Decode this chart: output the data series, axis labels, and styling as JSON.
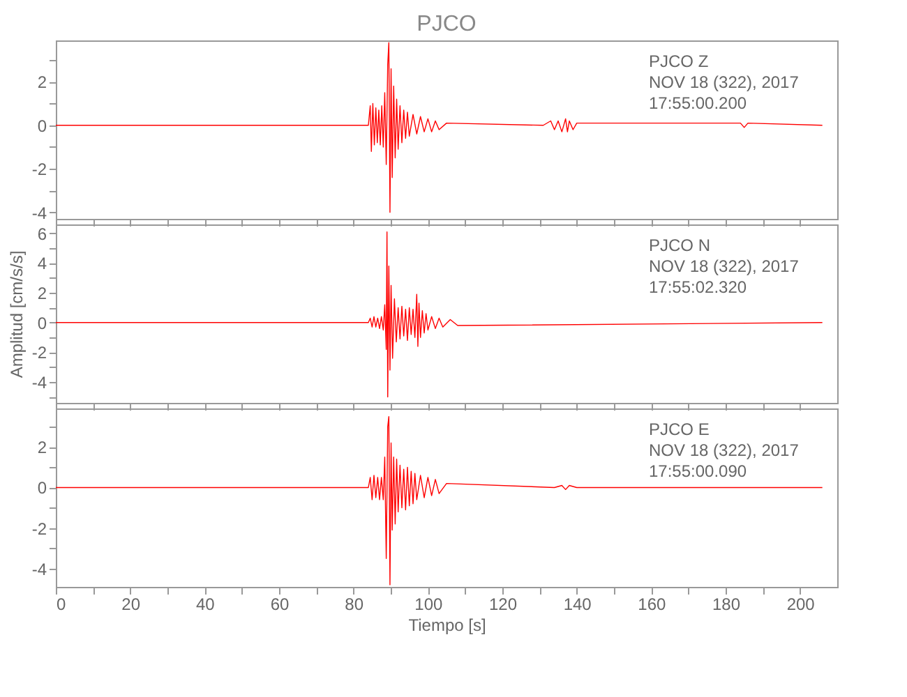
{
  "chart_data": [
    {
      "type": "line",
      "title": "PJCO",
      "annotations": [
        "PJCO   Z",
        "NOV 18 (322), 2017",
        "17:55:00.200"
      ],
      "xlim": [
        0,
        210
      ],
      "ylim": [
        -4.3,
        3.9
      ],
      "xticks": [
        0,
        {
          "value": 10,
          "label": null
        },
        20,
        {
          "value": 30,
          "label": null
        },
        40,
        {
          "value": 50,
          "label": null
        },
        60,
        {
          "value": 70,
          "label": null
        },
        80,
        {
          "value": 90,
          "label": null
        },
        100,
        {
          "value": 110,
          "label": null
        },
        120,
        {
          "value": 130,
          "label": null
        },
        140,
        {
          "value": 150,
          "label": null
        },
        160,
        {
          "value": 170,
          "label": null
        },
        180,
        {
          "value": 190,
          "label": null
        },
        200
      ],
      "yticks": [
        -4,
        {
          "value": -3,
          "label": null
        },
        -2,
        {
          "value": -1,
          "label": null
        },
        0,
        {
          "value": 1,
          "label": null
        },
        2,
        {
          "value": 3,
          "label": null
        }
      ],
      "tick_labels": "y",
      "grid": false,
      "series": [
        {
          "color": "#ff0000",
          "x": [
            0,
            84,
            84.5,
            84.8,
            85.2,
            85.6,
            86,
            86.4,
            86.8,
            87.2,
            87.6,
            88,
            88.4,
            88.8,
            89.2,
            89.5,
            89.8,
            90.1,
            90.4,
            90.8,
            91.2,
            91.6,
            92,
            92.5,
            93,
            93.5,
            94,
            94.5,
            95,
            96,
            97,
            98,
            99,
            100,
            101,
            102,
            103,
            105,
            131,
            133,
            134,
            135,
            136,
            137,
            137.5,
            138,
            139,
            140,
            184,
            185,
            186,
            206
          ],
          "values": [
            0,
            0,
            0.9,
            -1.2,
            1.0,
            -0.9,
            0.8,
            -0.8,
            0.7,
            -0.9,
            0.9,
            -1.0,
            1.5,
            -1.8,
            2.8,
            3.8,
            -4.0,
            2.6,
            -2.4,
            1.8,
            -1.5,
            1.2,
            -1.1,
            0.9,
            -0.8,
            0.7,
            -0.6,
            0.6,
            -0.5,
            0.5,
            -0.4,
            0.4,
            -0.3,
            0.3,
            -0.3,
            0.2,
            -0.2,
            0.1,
            0,
            0.2,
            -0.2,
            0.2,
            -0.3,
            0.3,
            -0.3,
            0.2,
            -0.2,
            0.1,
            0.1,
            -0.1,
            0.1,
            0
          ]
        }
      ]
    },
    {
      "type": "line",
      "ylabel": "Amplitud [cm/s/s]",
      "annotations": [
        "PJCO   N",
        "NOV 18 (322), 2017",
        "17:55:02.320"
      ],
      "xlim": [
        0,
        210
      ],
      "ylim": [
        -5.4,
        6.6
      ],
      "xticks": [
        0,
        {
          "value": 10,
          "label": null
        },
        20,
        {
          "value": 30,
          "label": null
        },
        40,
        {
          "value": 50,
          "label": null
        },
        60,
        {
          "value": 70,
          "label": null
        },
        80,
        {
          "value": 90,
          "label": null
        },
        100,
        {
          "value": 110,
          "label": null
        },
        120,
        {
          "value": 130,
          "label": null
        },
        140,
        {
          "value": 150,
          "label": null
        },
        160,
        {
          "value": 170,
          "label": null
        },
        180,
        {
          "value": 190,
          "label": null
        },
        200
      ],
      "yticks": [
        {
          "value": -5,
          "label": null
        },
        -4,
        {
          "value": -3,
          "label": null
        },
        -2,
        {
          "value": -1,
          "label": null
        },
        0,
        {
          "value": 1,
          "label": null
        },
        2,
        {
          "value": 3,
          "label": null
        },
        4,
        {
          "value": 5,
          "label": null
        },
        6
      ],
      "tick_labels": "y",
      "grid": false,
      "series": [
        {
          "color": "#ff0000",
          "x": [
            0,
            84,
            84.5,
            85,
            85.5,
            86,
            86.5,
            87,
            87.5,
            88,
            88.4,
            88.8,
            89,
            89.2,
            89.5,
            89.8,
            90.1,
            90.5,
            91,
            91.5,
            92,
            92.5,
            93,
            93.5,
            94,
            94.5,
            95,
            95.5,
            96,
            96.5,
            97,
            97.3,
            97.6,
            98,
            98.5,
            99,
            99.5,
            100,
            101,
            102,
            103,
            104,
            106,
            108,
            206
          ],
          "values": [
            0,
            0,
            0.3,
            -0.3,
            0.4,
            -0.3,
            0.3,
            -0.4,
            0.4,
            -0.5,
            1.2,
            -1.8,
            6.1,
            -5.0,
            3.8,
            -3.2,
            2.5,
            -2.4,
            1.6,
            -1.3,
            1.0,
            -1.1,
            1.1,
            -0.9,
            0.9,
            -1.2,
            1.0,
            -0.8,
            0.9,
            -1.0,
            1.9,
            -1.6,
            1.3,
            -1.0,
            0.8,
            -0.7,
            0.6,
            -0.5,
            0.4,
            -0.4,
            0.3,
            -0.3,
            0.2,
            -0.2,
            0
          ]
        }
      ]
    },
    {
      "type": "line",
      "xlabel": "Tiempo [s]",
      "annotations": [
        "PJCO   E",
        "NOV 18 (322), 2017",
        "17:55:00.090"
      ],
      "xlim": [
        0,
        210
      ],
      "ylim": [
        -4.9,
        3.9
      ],
      "xticks": [
        0,
        {
          "value": 10,
          "label": null
        },
        20,
        {
          "value": 30,
          "label": null
        },
        40,
        {
          "value": 50,
          "label": null
        },
        60,
        {
          "value": 70,
          "label": null
        },
        80,
        {
          "value": 90,
          "label": null
        },
        100,
        {
          "value": 110,
          "label": null
        },
        120,
        {
          "value": 130,
          "label": null
        },
        140,
        {
          "value": 150,
          "label": null
        },
        160,
        {
          "value": 170,
          "label": null
        },
        180,
        {
          "value": 190,
          "label": null
        },
        200
      ],
      "yticks": [
        -4,
        {
          "value": -3,
          "label": null
        },
        -2,
        {
          "value": -1,
          "label": null
        },
        0,
        {
          "value": 1,
          "label": null
        },
        2,
        {
          "value": 3,
          "label": null
        }
      ],
      "grid": false,
      "series": [
        {
          "color": "#ff0000",
          "x": [
            0,
            84,
            84.5,
            85,
            85.5,
            86,
            86.5,
            87,
            87.5,
            88,
            88.4,
            88.8,
            89.2,
            89.5,
            89.8,
            90.1,
            90.4,
            90.8,
            91.2,
            91.6,
            92,
            92.5,
            93,
            93.5,
            94,
            94.5,
            95,
            95.5,
            96,
            96.5,
            97,
            98,
            99,
            100,
            101,
            102,
            103,
            105,
            134,
            136,
            137,
            138,
            140,
            206
          ],
          "values": [
            0,
            0,
            0.5,
            -0.6,
            0.6,
            -0.5,
            0.5,
            -0.6,
            0.5,
            -0.6,
            1.5,
            -3.5,
            3.0,
            3.5,
            -4.8,
            2.2,
            -2.1,
            1.5,
            -1.8,
            1.4,
            -1.2,
            1.1,
            -1.0,
            0.9,
            -1.1,
            1.0,
            -0.9,
            0.8,
            -0.8,
            0.7,
            -0.6,
            0.6,
            -0.5,
            0.5,
            -0.4,
            0.4,
            -0.3,
            0.2,
            0,
            0.1,
            -0.1,
            0.1,
            0,
            0
          ]
        }
      ]
    }
  ]
}
